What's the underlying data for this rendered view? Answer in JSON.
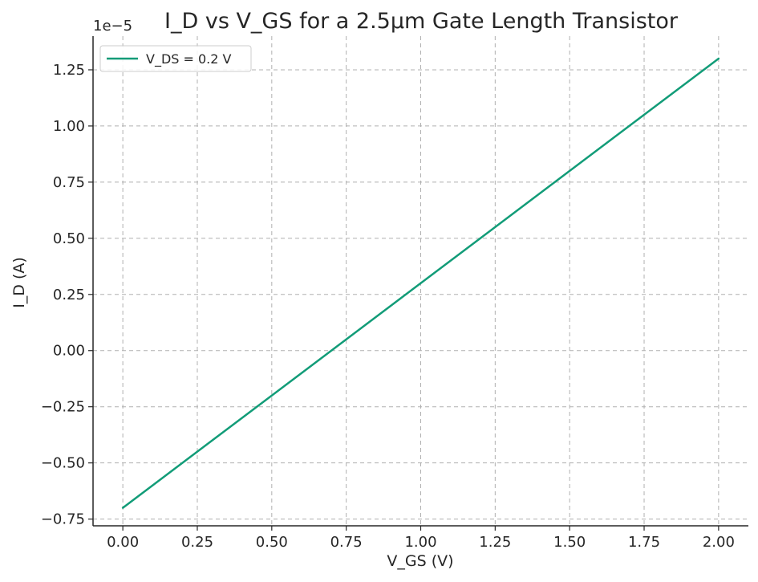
{
  "chart_data": {
    "type": "line",
    "title": "I_D vs V_GS for a 2.5µm Gate Length Transistor",
    "xlabel": "V_GS (V)",
    "ylabel": "I_D (A)",
    "y_offset_label": "1e−5",
    "xlim": [
      -0.1,
      2.1
    ],
    "ylim": [
      -7.8e-06,
      1.4e-05
    ],
    "x_ticks": [
      0.0,
      0.25,
      0.5,
      0.75,
      1.0,
      1.25,
      1.5,
      1.75,
      2.0
    ],
    "x_tick_labels": [
      "0.00",
      "0.25",
      "0.50",
      "0.75",
      "1.00",
      "1.25",
      "1.50",
      "1.75",
      "2.00"
    ],
    "y_ticks": [
      -7.5e-06,
      -5e-06,
      -2.5e-06,
      0.0,
      2.5e-06,
      5e-06,
      7.5e-06,
      1e-05,
      1.25e-05
    ],
    "y_tick_labels": [
      "−0.75",
      "−0.50",
      "−0.25",
      "0.00",
      "0.25",
      "0.50",
      "0.75",
      "1.00",
      "1.25"
    ],
    "grid": true,
    "legend_position": "top-left",
    "series": [
      {
        "name": "V_DS = 0.2 V",
        "color": "#129c78",
        "x": [
          0.0,
          2.0
        ],
        "y": [
          -7e-06,
          1.3e-05
        ]
      }
    ]
  }
}
